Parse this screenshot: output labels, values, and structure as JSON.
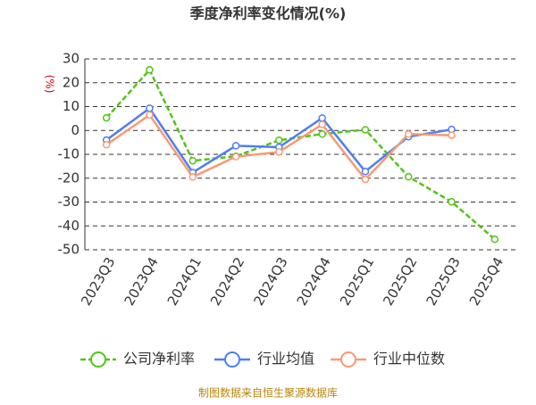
{
  "chart_data": {
    "type": "line",
    "title": "季度净利率变化情况(%)",
    "y_label": "(%)",
    "categories": [
      "2023Q3",
      "2023Q4",
      "2024Q1",
      "2024Q2",
      "2024Q3",
      "2024Q4",
      "2025Q1",
      "2025Q2",
      "2025Q3",
      "2025Q4"
    ],
    "series": [
      {
        "name": "公司净利率",
        "color": "#52c41a",
        "dash": true,
        "values": [
          5.3,
          25.4,
          -12.7,
          -10.8,
          -4.1,
          -1.5,
          0.3,
          -19.4,
          -29.9,
          -45.6
        ]
      },
      {
        "name": "行业均值",
        "color": "#4f7df5",
        "dash": false,
        "values": [
          -4,
          9.3,
          -17.6,
          -6.4,
          -7,
          5.2,
          -17.2,
          -2.6,
          0.4,
          null
        ]
      },
      {
        "name": "行业中位数",
        "color": "#f79a74",
        "dash": false,
        "values": [
          -6,
          6.5,
          -19.5,
          -11,
          -9,
          2.5,
          -20.5,
          -1.5,
          -2,
          null
        ]
      }
    ],
    "ylim": [
      -50,
      30
    ],
    "yticks": [
      30,
      20,
      10,
      0,
      -10,
      -20,
      -30,
      -40,
      -50
    ],
    "grid": true,
    "source": "制图数据来自恒生聚源数据库"
  }
}
